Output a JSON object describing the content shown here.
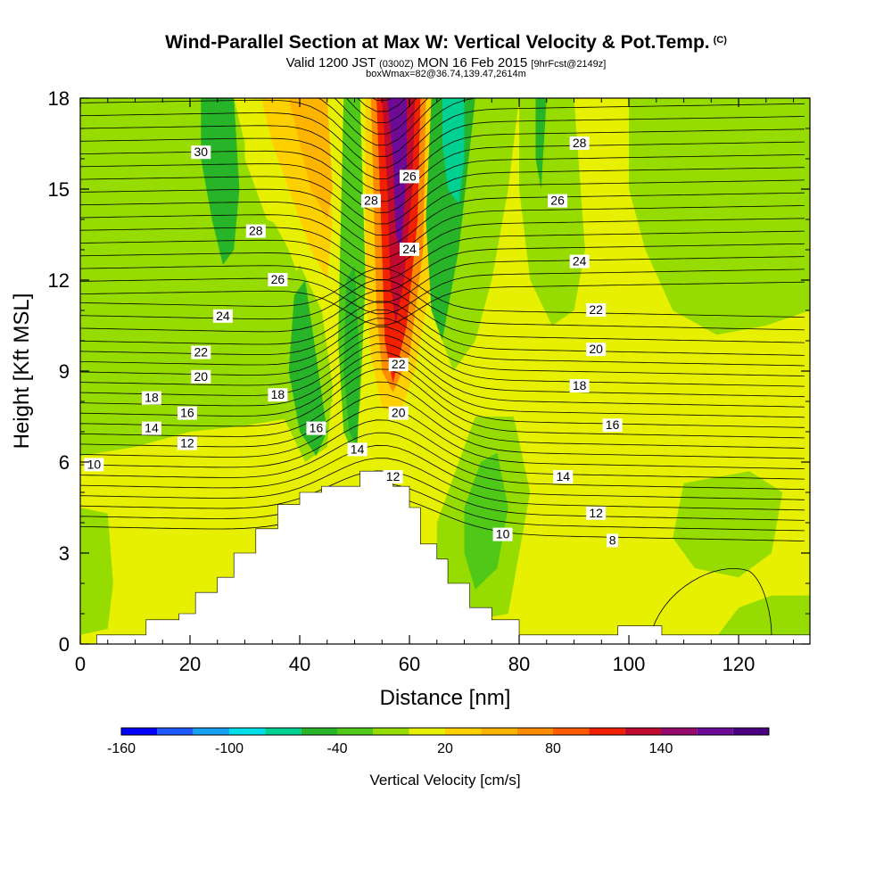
{
  "header": {
    "title": "Wind-Parallel Section at Max W: Vertical Velocity & Pot.Temp.",
    "title_mark": "(C)",
    "valid_main": "Valid 1200 JST",
    "valid_zulu": "(0300Z)",
    "valid_date": "MON 16 Feb 2015",
    "forecast": "[9hrFcst@2149z]",
    "box_info": "boxWmax=82@36.74,139.47,2614m"
  },
  "chart_data": {
    "type": "heatmap",
    "xlabel": "Distance [nm]",
    "ylabel": "Height [Kft MSL]",
    "xlim": [
      0,
      133
    ],
    "ylim": [
      0,
      18
    ],
    "x_ticks": [
      "0",
      "20",
      "40",
      "60",
      "80",
      "100",
      "120"
    ],
    "y_ticks": [
      "0",
      "3",
      "6",
      "9",
      "12",
      "15",
      "18"
    ],
    "colorbar": {
      "label": "Vertical Velocity [cm/s]",
      "tick_labels": [
        "-160",
        "-100",
        "-40",
        "20",
        "80",
        "140"
      ],
      "colors": [
        "#0000ff",
        "#1e5aff",
        "#15a0f0",
        "#00e0e8",
        "#00d090",
        "#28b428",
        "#50c818",
        "#96dc00",
        "#e6f000",
        "#ffd000",
        "#ffb400",
        "#ff8c00",
        "#ff5a00",
        "#f02000",
        "#c00a30",
        "#960a6e",
        "#6e0a96",
        "#4b0082"
      ]
    },
    "terrain_profile": [
      [
        0,
        0
      ],
      [
        3,
        0.3
      ],
      [
        10,
        0.3
      ],
      [
        12,
        0.8
      ],
      [
        18,
        1.0
      ],
      [
        21,
        1.7
      ],
      [
        25,
        2.2
      ],
      [
        28,
        3.0
      ],
      [
        32,
        3.8
      ],
      [
        36,
        4.6
      ],
      [
        40,
        5.0
      ],
      [
        44,
        5.2
      ],
      [
        48,
        5.2
      ],
      [
        51,
        5.7
      ],
      [
        54,
        5.7
      ],
      [
        57,
        5.2
      ],
      [
        60,
        4.5
      ],
      [
        62,
        3.3
      ],
      [
        65,
        2.8
      ],
      [
        67,
        2.0
      ],
      [
        71,
        1.2
      ],
      [
        75,
        0.8
      ],
      [
        80,
        0.3
      ],
      [
        96,
        0.3
      ],
      [
        98,
        0.6
      ],
      [
        102,
        0.6
      ],
      [
        106,
        0.3
      ],
      [
        133,
        0.3
      ]
    ],
    "theta_contours": [
      {
        "label": "8",
        "x": 97,
        "y": 3.4
      },
      {
        "label": "10",
        "x": 2.5,
        "y": 5.9
      },
      {
        "label": "10",
        "x": 77,
        "y": 3.6
      },
      {
        "label": "12",
        "x": 19.5,
        "y": 6.6
      },
      {
        "label": "12",
        "x": 57,
        "y": 5.5
      },
      {
        "label": "12",
        "x": 94,
        "y": 4.3
      },
      {
        "label": "14",
        "x": 13,
        "y": 7.1
      },
      {
        "label": "14",
        "x": 50.5,
        "y": 6.4
      },
      {
        "label": "14",
        "x": 88,
        "y": 5.5
      },
      {
        "label": "16",
        "x": 19.5,
        "y": 7.6
      },
      {
        "label": "16",
        "x": 43,
        "y": 7.1
      },
      {
        "label": "16",
        "x": 97,
        "y": 7.2
      },
      {
        "label": "18",
        "x": 13,
        "y": 8.1
      },
      {
        "label": "18",
        "x": 36,
        "y": 8.2
      },
      {
        "label": "18",
        "x": 91,
        "y": 8.5
      },
      {
        "label": "20",
        "x": 22,
        "y": 8.8
      },
      {
        "label": "20",
        "x": 58,
        "y": 7.6
      },
      {
        "label": "20",
        "x": 94,
        "y": 9.7
      },
      {
        "label": "22",
        "x": 22,
        "y": 9.6
      },
      {
        "label": "22",
        "x": 58,
        "y": 9.2
      },
      {
        "label": "22",
        "x": 94,
        "y": 11.0
      },
      {
        "label": "24",
        "x": 26,
        "y": 10.8
      },
      {
        "label": "24",
        "x": 60,
        "y": 13.0
      },
      {
        "label": "24",
        "x": 91,
        "y": 12.6
      },
      {
        "label": "26",
        "x": 36,
        "y": 12.0
      },
      {
        "label": "26",
        "x": 60,
        "y": 15.4
      },
      {
        "label": "26",
        "x": 87,
        "y": 14.6
      },
      {
        "label": "28",
        "x": 32,
        "y": 13.6
      },
      {
        "label": "28",
        "x": 53,
        "y": 14.6
      },
      {
        "label": "28",
        "x": 91,
        "y": 16.5
      },
      {
        "label": "30",
        "x": 22,
        "y": 16.2
      }
    ]
  }
}
